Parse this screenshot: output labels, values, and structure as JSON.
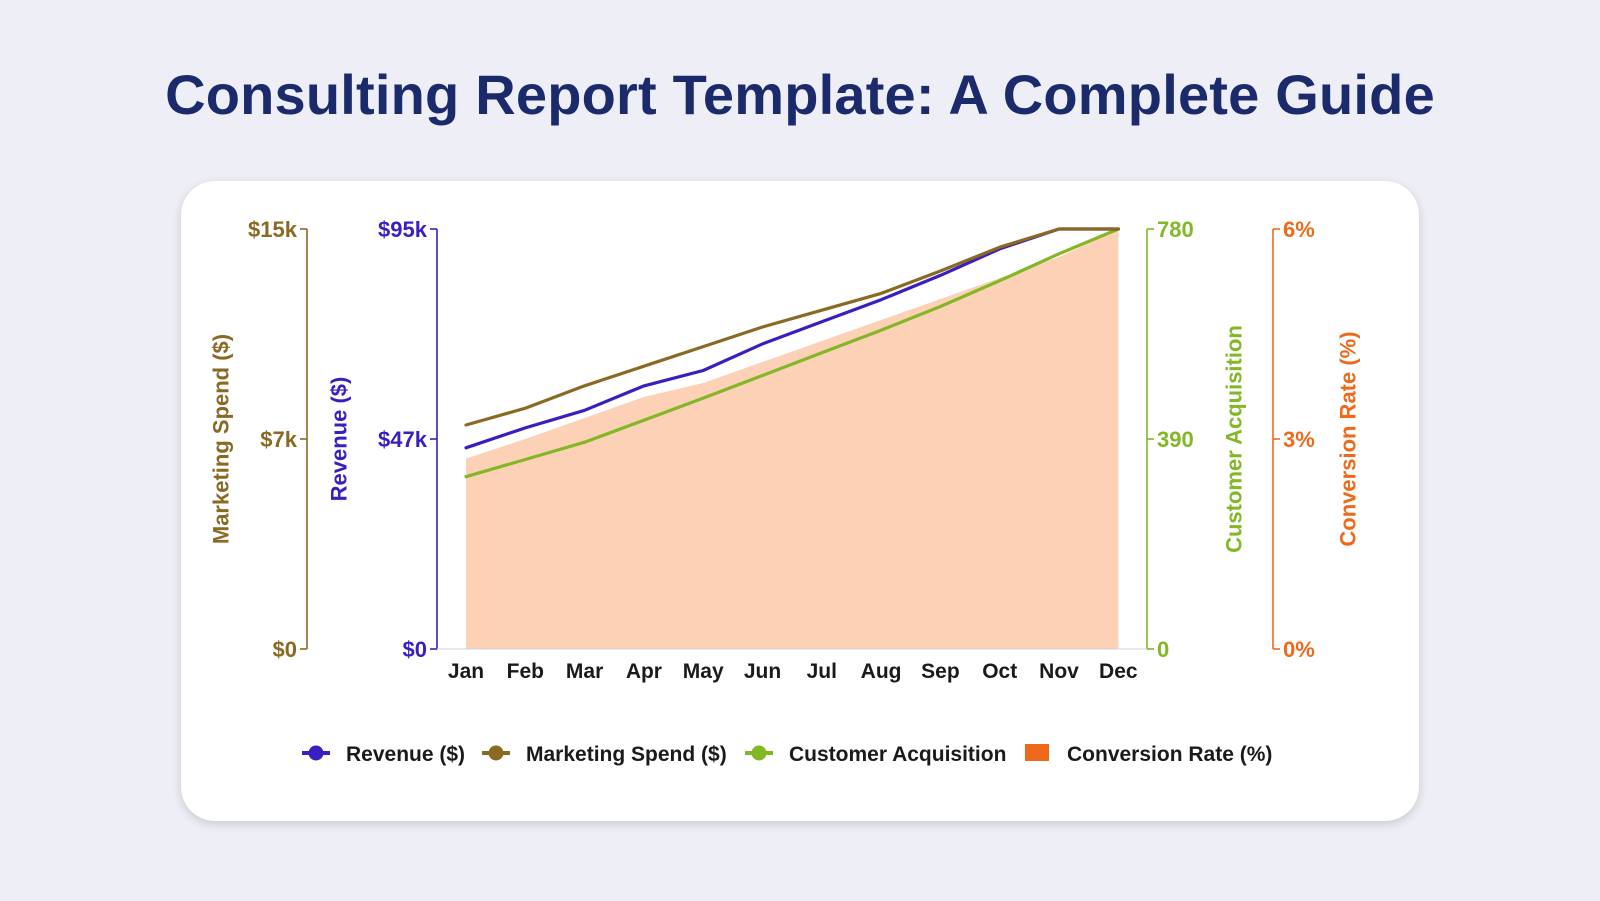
{
  "page": {
    "title": "Consulting Report Template: A Complete Guide"
  },
  "chart_data": {
    "type": "line",
    "categories": [
      "Jan",
      "Feb",
      "Mar",
      "Apr",
      "May",
      "Jun",
      "Jul",
      "Aug",
      "Sep",
      "Oct",
      "Nov",
      "Dec"
    ],
    "axes": {
      "marketing": {
        "label": "Marketing Spend ($)",
        "ticks": [
          "$15k",
          "$7k",
          "$0"
        ],
        "range": [
          0,
          15000
        ],
        "color": "#8a6a22",
        "position": "far-left"
      },
      "revenue": {
        "label": "Revenue ($)",
        "ticks": [
          "$95k",
          "$47k",
          "$0"
        ],
        "range": [
          0,
          95000
        ],
        "color": "#3a1fc0",
        "position": "left"
      },
      "customers": {
        "label": "Customer Acquisition",
        "ticks": [
          "780",
          "390",
          "0"
        ],
        "range": [
          0,
          780
        ],
        "color": "#82b725",
        "position": "right"
      },
      "conversion": {
        "label": "Conversion Rate (%)",
        "ticks": [
          "6%",
          "3%",
          "0%"
        ],
        "range": [
          0,
          6
        ],
        "color": "#ee6a1a",
        "position": "far-right"
      }
    },
    "series": [
      {
        "name": "Revenue ($)",
        "axis": "revenue",
        "kind": "line",
        "color": "#3a1fc0",
        "values": [
          45500,
          50000,
          54000,
          59500,
          63000,
          69000,
          74000,
          79000,
          84500,
          90500,
          96000,
          102000
        ]
      },
      {
        "name": "Marketing Spend ($)",
        "axis": "marketing",
        "kind": "line",
        "color": "#8a6a22",
        "values": [
          8000,
          8600,
          9400,
          10100,
          10800,
          11500,
          12100,
          12700,
          13500,
          14350,
          15150,
          15900
        ]
      },
      {
        "name": "Customer Acquisition",
        "axis": "customers",
        "kind": "line",
        "color": "#82b725",
        "values": [
          320,
          352,
          384,
          425,
          466,
          508,
          550,
          592,
          636,
          684,
          734,
          785
        ]
      },
      {
        "name": "Conversion Rate (%)",
        "axis": "conversion",
        "kind": "area",
        "color": "#ee6a1a",
        "fill": "#fcd1b6",
        "values": [
          2.72,
          3.0,
          3.3,
          3.6,
          3.8,
          4.1,
          4.4,
          4.7,
          5.0,
          5.3,
          5.6,
          6.05
        ]
      }
    ],
    "legend": {
      "placement": "bottom",
      "items": [
        {
          "label": "Revenue ($)",
          "color": "#3a1fc0",
          "marker": "line"
        },
        {
          "label": "Marketing Spend ($)",
          "color": "#8a6a22",
          "marker": "line"
        },
        {
          "label": "Customer Acquisition",
          "color": "#82b725",
          "marker": "line"
        },
        {
          "label": "Conversion Rate (%)",
          "color": "#ee6a1a",
          "marker": "square"
        }
      ]
    },
    "grid": false
  }
}
